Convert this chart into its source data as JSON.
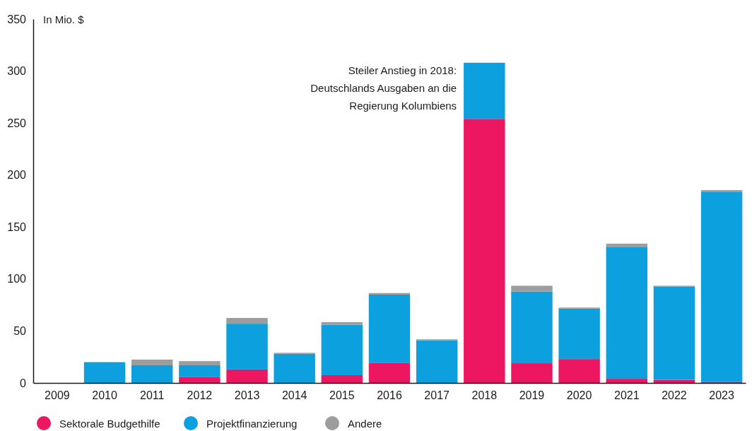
{
  "chart_data": {
    "type": "bar",
    "stacked": true,
    "ylabel": "In Mio. $",
    "categories": [
      "2009",
      "2010",
      "2011",
      "2012",
      "2013",
      "2014",
      "2015",
      "2016",
      "2017",
      "2018",
      "2019",
      "2020",
      "2021",
      "2022",
      "2023"
    ],
    "series": [
      {
        "name": "Sektorale Budgethilfe",
        "color": "#ed1660",
        "values": [
          0,
          0,
          0,
          5.5,
          13,
          0,
          7.5,
          19.5,
          0,
          254,
          19,
          23,
          4,
          3,
          1
        ]
      },
      {
        "name": "Projektfinanzierung",
        "color": "#0ca1de",
        "values": [
          0,
          20,
          17,
          11.5,
          44,
          28,
          48.5,
          65.5,
          41,
          54,
          69,
          48.5,
          126.5,
          89.5,
          183
        ]
      },
      {
        "name": "Andere",
        "color": "#9d9d9d",
        "values": [
          0,
          0,
          5.5,
          4,
          5.5,
          1,
          2.5,
          1.5,
          1,
          0,
          5.5,
          1,
          3.5,
          1,
          1.5
        ]
      }
    ],
    "ylim": [
      0,
      350
    ],
    "yticks": [
      0,
      50,
      100,
      150,
      200,
      250,
      300,
      350
    ],
    "grid": false,
    "legend": "bottom",
    "annotations": [
      {
        "text": "Steiler Anstieg in 2018:\nDeutschlands Ausgaben an die\nRegierung Kolumbiens",
        "x": "2018",
        "y": 308
      }
    ]
  }
}
